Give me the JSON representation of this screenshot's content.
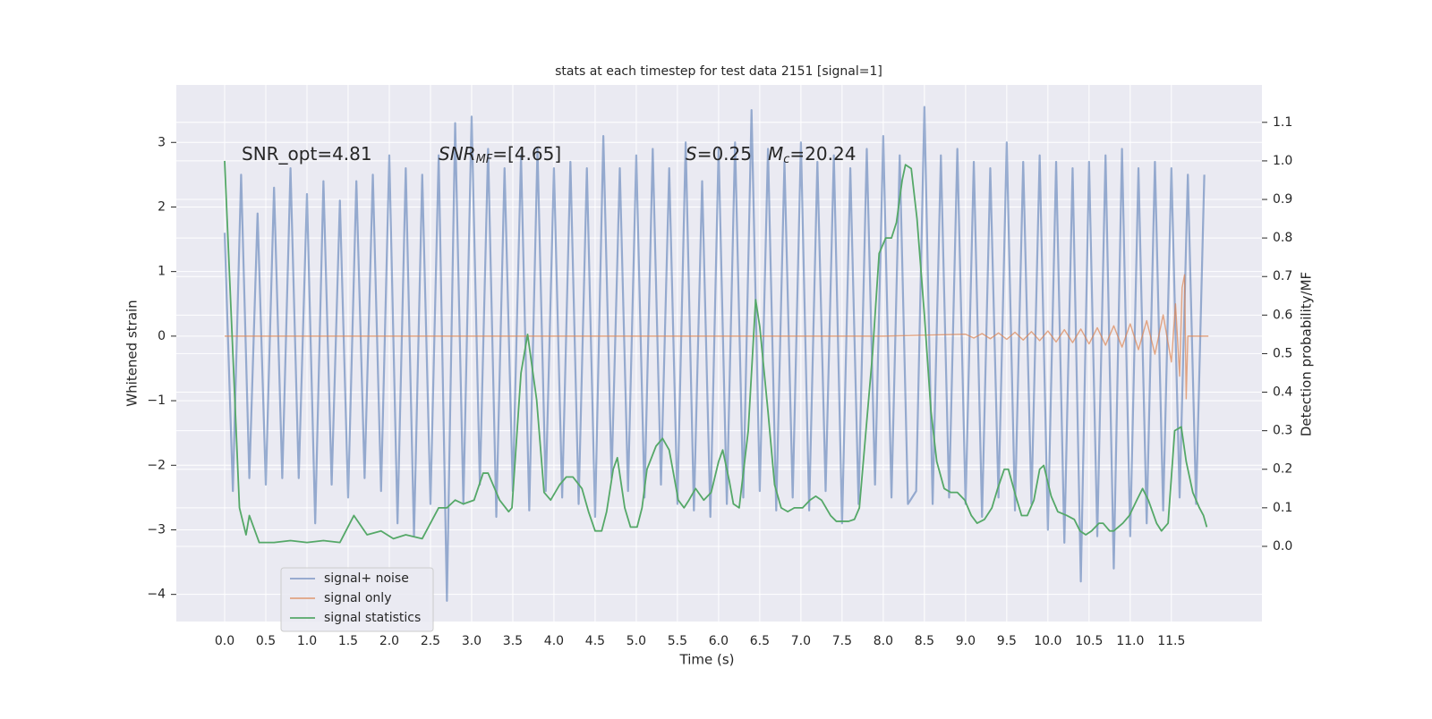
{
  "chart_data": {
    "type": "line",
    "title": "stats at each timestep for test data 2151 [signal=1]",
    "xlabel": "Time (s)",
    "ylabel": "Whitened strain",
    "y2label": "Detection probability/MF",
    "annotations": [
      {
        "parts": [
          "SNR_opt=4.81"
        ]
      },
      {
        "parts": [
          "SNR",
          "MF",
          "=[4.65]"
        ]
      },
      {
        "parts": [
          "S",
          "=0.25"
        ]
      },
      {
        "parts": [
          "M",
          "c",
          "=20.24"
        ]
      }
    ],
    "xlim": [
      -0.587,
      12.6
    ],
    "xticks": [
      {
        "value": 0,
        "label": "0.0"
      },
      0.5,
      {
        "value": 1,
        "label": "1.0"
      },
      1.5,
      {
        "value": 2,
        "label": "2.0"
      },
      2.5,
      {
        "value": 3,
        "label": "3.0"
      },
      3.5,
      {
        "value": 4,
        "label": "4.0"
      },
      4.5,
      {
        "value": 5,
        "label": "5.0"
      },
      5.5,
      {
        "value": 6,
        "label": "6.0"
      },
      6.5,
      {
        "value": 7,
        "label": "7.0"
      },
      7.5,
      {
        "value": 8,
        "label": "8.0"
      },
      8.5,
      {
        "value": 9,
        "label": "9.0"
      },
      9.5,
      {
        "value": 10,
        "label": "10.0"
      },
      10.5,
      {
        "value": 11,
        "label": "11.0"
      },
      11.5
    ],
    "ylim": [
      -4.42,
      3.89
    ],
    "yticks": [
      {
        "value": -4,
        "label": "−4"
      },
      {
        "value": -3,
        "label": "−3"
      },
      {
        "value": -2,
        "label": "−2"
      },
      {
        "value": -1,
        "label": "−1"
      },
      0,
      1,
      2,
      3
    ],
    "y2lim": [
      -0.195,
      1.197
    ],
    "y2ticks": [
      {
        "value": 0,
        "label": "0.0"
      },
      0.1,
      0.2,
      0.3,
      0.4,
      0.5,
      0.6,
      0.7,
      0.8,
      0.9,
      {
        "value": 1,
        "label": "1.0"
      },
      1.1
    ],
    "grid": true,
    "legend": "lower left",
    "series": [
      {
        "name": "signal+ noise",
        "color": "#4c72b0",
        "x": [
          0,
          0.1,
          0.2,
          0.3,
          0.4,
          0.5,
          0.6,
          0.7,
          0.8,
          0.9,
          1,
          1.1,
          1.2,
          1.3,
          1.4,
          1.5,
          1.6,
          1.7,
          1.8,
          1.9,
          2,
          2.1,
          2.2,
          2.3,
          2.4,
          2.5,
          2.6,
          2.7,
          2.8,
          2.9,
          3,
          3.1,
          3.2,
          3.3,
          3.4,
          3.5,
          3.6,
          3.7,
          3.8,
          3.9,
          4,
          4.1,
          4.2,
          4.3,
          4.4,
          4.5,
          4.6,
          4.7,
          4.8,
          4.9,
          5,
          5.1,
          5.2,
          5.3,
          5.4,
          5.5,
          5.6,
          5.7,
          5.8,
          5.9,
          6,
          6.1,
          6.2,
          6.3,
          6.4,
          6.5,
          6.6,
          6.7,
          6.8,
          6.9,
          7,
          7.1,
          7.2,
          7.3,
          7.4,
          7.5,
          7.6,
          7.7,
          7.8,
          7.9,
          8,
          8.1,
          8.2,
          8.3,
          8.4,
          8.5,
          8.6,
          8.7,
          8.8,
          8.9,
          9,
          9.1,
          9.2,
          9.3,
          9.4,
          9.5,
          9.6,
          9.7,
          9.8,
          9.9,
          10,
          10.1,
          10.2,
          10.3,
          10.4,
          10.5,
          10.6,
          10.7,
          10.8,
          10.9,
          11,
          11.1,
          11.2,
          11.3,
          11.4,
          11.5,
          11.6,
          11.7,
          11.8,
          11.9
        ],
        "values": [
          1.6,
          -2.4,
          2.5,
          -2.2,
          1.9,
          -2.3,
          2.3,
          -2.2,
          2.6,
          -2.2,
          2.2,
          -2.9,
          2.4,
          -2.3,
          2.1,
          -2.5,
          2.4,
          -2.2,
          2.5,
          -2.4,
          2.8,
          -2.9,
          2.6,
          -3.1,
          2.5,
          -2.6,
          2.8,
          -4.1,
          3.3,
          -2.6,
          3.4,
          -2.3,
          2.9,
          -2.8,
          2.6,
          -2.4,
          2.8,
          -2.7,
          2.9,
          -2.4,
          2.6,
          -2.5,
          2.7,
          -2.6,
          2.6,
          -2.8,
          3.1,
          -2.2,
          2.6,
          -2.4,
          2.8,
          -2.5,
          2.9,
          -2.3,
          2.6,
          -2.6,
          3.0,
          -2.7,
          2.4,
          -2.8,
          2.9,
          -2.6,
          3.0,
          -2.5,
          3.5,
          -2.4,
          2.9,
          -2.7,
          2.7,
          -2.5,
          3.0,
          -2.7,
          2.7,
          -2.4,
          2.8,
          -2.9,
          2.6,
          -2.6,
          2.9,
          -2.3,
          3.1,
          -2.5,
          2.8,
          -2.6,
          -2.4,
          3.55,
          -2.6,
          2.8,
          -2.5,
          2.9,
          -2.6,
          2.7,
          -2.8,
          2.6,
          -2.5,
          3.0,
          -2.7,
          2.7,
          -2.6,
          2.8,
          -3.0,
          2.7,
          -3.2,
          2.6,
          -3.8,
          2.7,
          -3.1,
          2.8,
          -3.6,
          2.9,
          -3.1,
          2.6,
          -2.9,
          2.7,
          -2.7,
          2.6,
          -2.5,
          2.5,
          -2.6,
          2.5
        ]
      },
      {
        "name": "signal only",
        "color": "#dd8452",
        "x": [
          0,
          8,
          9,
          9.1,
          9.2,
          9.3,
          9.4,
          9.5,
          9.6,
          9.7,
          9.8,
          9.9,
          10,
          10.1,
          10.2,
          10.3,
          10.4,
          10.5,
          10.6,
          10.7,
          10.8,
          10.9,
          11,
          11.1,
          11.2,
          11.3,
          11.4,
          11.5,
          11.55,
          11.6,
          11.63,
          11.66,
          11.68,
          11.7,
          11.95
        ],
        "values": [
          0,
          0,
          0.03,
          -0.03,
          0.04,
          -0.04,
          0.05,
          -0.05,
          0.06,
          -0.06,
          0.07,
          -0.07,
          0.08,
          -0.09,
          0.1,
          -0.1,
          0.11,
          -0.12,
          0.13,
          -0.14,
          0.16,
          -0.17,
          0.19,
          -0.21,
          0.24,
          -0.28,
          0.33,
          -0.4,
          0.5,
          -0.62,
          0.75,
          0.95,
          -0.97,
          0,
          0
        ]
      },
      {
        "name": "signal statistics",
        "color": "#55a868",
        "axis": "y2",
        "x": [
          0,
          0.15,
          0.18,
          0.26,
          0.3,
          0.42,
          0.6,
          0.8,
          1.0,
          1.2,
          1.4,
          1.57,
          1.73,
          1.9,
          2.05,
          2.2,
          2.4,
          2.6,
          2.7,
          2.8,
          2.9,
          3.03,
          3.14,
          3.2,
          3.34,
          3.45,
          3.49,
          3.6,
          3.68,
          3.79,
          3.88,
          3.96,
          4.07,
          4.15,
          4.23,
          4.34,
          4.42,
          4.5,
          4.58,
          4.64,
          4.72,
          4.77,
          4.86,
          4.93,
          5.01,
          5.07,
          5.13,
          5.24,
          5.32,
          5.4,
          5.46,
          5.51,
          5.58,
          5.64,
          5.72,
          5.82,
          5.91,
          6.0,
          6.05,
          6.13,
          6.18,
          6.25,
          6.36,
          6.45,
          6.5,
          6.6,
          6.68,
          6.76,
          6.84,
          6.92,
          7.02,
          7.11,
          7.18,
          7.25,
          7.36,
          7.43,
          7.58,
          7.65,
          7.71,
          7.77,
          7.87,
          7.95,
          8.03,
          8.1,
          8.16,
          8.23,
          8.27,
          8.34,
          8.41,
          8.5,
          8.58,
          8.65,
          8.74,
          8.82,
          8.9,
          8.99,
          9.07,
          9.14,
          9.23,
          9.32,
          9.39,
          9.47,
          9.52,
          9.61,
          9.68,
          9.75,
          9.83,
          9.9,
          9.95,
          10.04,
          10.12,
          10.23,
          10.32,
          10.39,
          10.46,
          10.53,
          10.62,
          10.67,
          10.75,
          10.8,
          10.91,
          10.99,
          11.08,
          11.15,
          11.22,
          11.32,
          11.38,
          11.46,
          11.54,
          11.62,
          11.68,
          11.76,
          11.84,
          11.89,
          11.93
        ],
        "values": [
          1.0,
          0.25,
          0.1,
          0.03,
          0.08,
          0.01,
          0.01,
          0.015,
          0.01,
          0.015,
          0.01,
          0.08,
          0.03,
          0.04,
          0.02,
          0.03,
          0.02,
          0.1,
          0.1,
          0.12,
          0.11,
          0.12,
          0.19,
          0.19,
          0.12,
          0.09,
          0.1,
          0.45,
          0.55,
          0.38,
          0.14,
          0.12,
          0.16,
          0.18,
          0.18,
          0.15,
          0.09,
          0.04,
          0.04,
          0.09,
          0.2,
          0.23,
          0.1,
          0.05,
          0.05,
          0.1,
          0.2,
          0.26,
          0.28,
          0.25,
          0.18,
          0.12,
          0.1,
          0.12,
          0.15,
          0.12,
          0.14,
          0.22,
          0.25,
          0.17,
          0.11,
          0.1,
          0.3,
          0.64,
          0.57,
          0.35,
          0.16,
          0.1,
          0.09,
          0.1,
          0.1,
          0.12,
          0.13,
          0.12,
          0.08,
          0.065,
          0.065,
          0.07,
          0.1,
          0.25,
          0.5,
          0.76,
          0.8,
          0.8,
          0.84,
          0.95,
          0.99,
          0.98,
          0.85,
          0.6,
          0.35,
          0.22,
          0.15,
          0.14,
          0.14,
          0.12,
          0.08,
          0.06,
          0.07,
          0.1,
          0.15,
          0.2,
          0.2,
          0.13,
          0.08,
          0.08,
          0.12,
          0.2,
          0.21,
          0.13,
          0.09,
          0.08,
          0.07,
          0.04,
          0.03,
          0.04,
          0.06,
          0.06,
          0.04,
          0.04,
          0.06,
          0.08,
          0.12,
          0.15,
          0.12,
          0.06,
          0.04,
          0.06,
          0.3,
          0.31,
          0.22,
          0.14,
          0.1,
          0.08,
          0.05
        ]
      }
    ]
  }
}
